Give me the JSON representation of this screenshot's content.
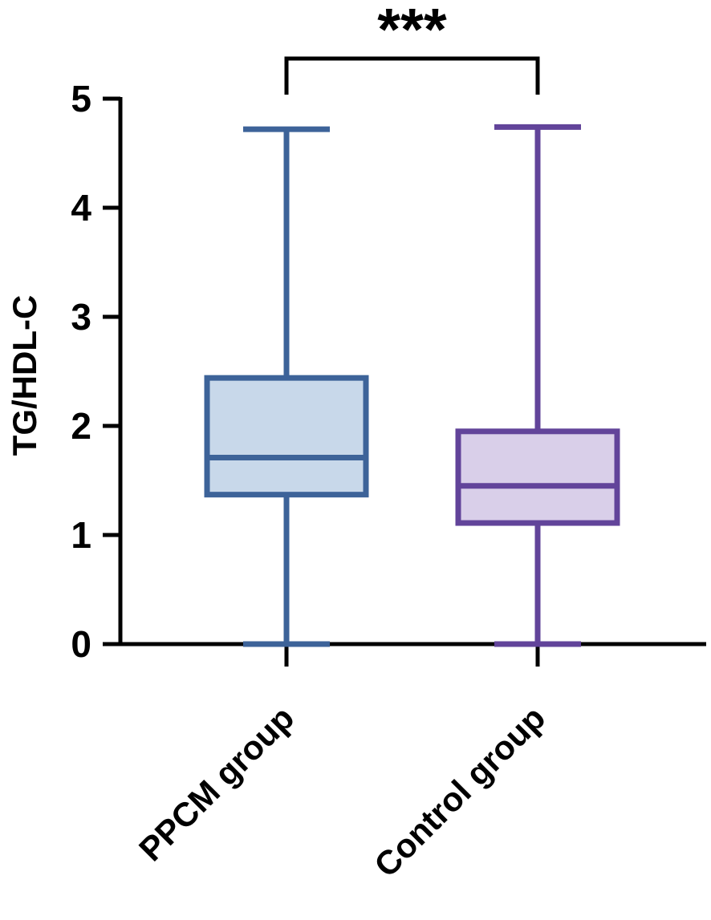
{
  "chart_data": {
    "type": "box",
    "ylabel": "TG/HDL-C",
    "xlabel": "",
    "ylim": [
      0,
      5
    ],
    "yticks": [
      "0",
      "1",
      "2",
      "3",
      "4",
      "5"
    ],
    "categories": [
      "PPCM group",
      "Control group"
    ],
    "boxes": [
      {
        "name": "PPCM group",
        "min": 0.0,
        "q1": 1.37,
        "median": 1.71,
        "q3": 2.44,
        "max": 4.72,
        "color": "#3d6399",
        "fill": "#c8d8ea"
      },
      {
        "name": "Control group",
        "min": 0.0,
        "q1": 1.11,
        "median": 1.45,
        "q3": 1.95,
        "max": 4.74,
        "color": "#62449a",
        "fill": "#d9cfe9"
      }
    ],
    "significance": {
      "label": "***",
      "between": [
        "PPCM group",
        "Control group"
      ]
    },
    "grid": false,
    "legend": "none"
  }
}
